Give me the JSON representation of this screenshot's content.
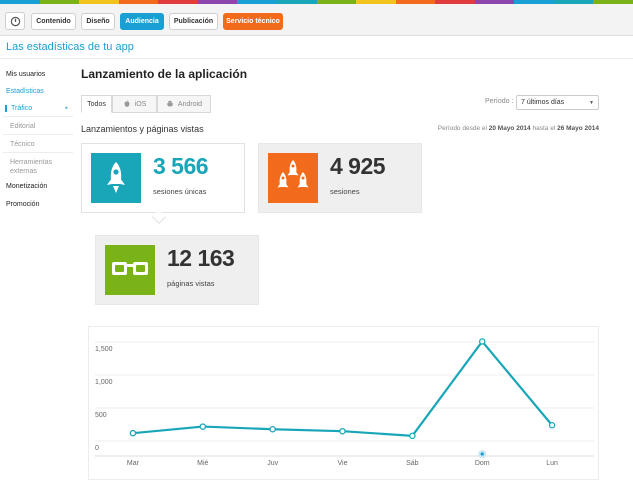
{
  "colors": {
    "accent": "#1a9fd4",
    "orange": "#f26b1d",
    "teal": "#19a6b9",
    "green": "#7ab317",
    "rainbow": [
      "#1a9fd4",
      "#7ab317",
      "#f2c31d",
      "#f26b1d",
      "#e23b3b",
      "#8e44ad",
      "#1a9fd4",
      "#19a6b9",
      "#7ab317",
      "#f2c31d",
      "#f26b1d",
      "#e23b3b",
      "#8e44ad",
      "#1a9fd4",
      "#19a6b9",
      "#7ab317"
    ]
  },
  "nav": {
    "home_icon": "home-icon",
    "tabs": [
      "Contenido",
      "Diseño",
      "Audiencia",
      "Publicación",
      "Servicio técnico"
    ]
  },
  "app_title": "Las estadísticas de tu app",
  "sidebar": {
    "items": [
      {
        "label": "Mis usuarios"
      },
      {
        "label": "Estadísticas"
      },
      {
        "label": "Tráfico"
      },
      {
        "label": "Editorial"
      },
      {
        "label": "Técnico"
      },
      {
        "label": "Herramientas externas"
      },
      {
        "label": "Monetización"
      },
      {
        "label": "Promoción"
      }
    ],
    "active_arrow": "▸"
  },
  "main": {
    "title": "Lanzamiento de la aplicación",
    "platform_tabs": [
      {
        "label": "Todos",
        "icon": ""
      },
      {
        "label": "iOS",
        "icon": "apple-icon"
      },
      {
        "label": "Android",
        "icon": "android-icon"
      }
    ],
    "periodo_label": "Período :",
    "periodo_value": "7 últimos días",
    "section_title": "Lanzamientos y páginas vistas",
    "range_prefix": "Período desde el",
    "range_from": "20 Mayo 2014",
    "range_mid": "hasta el",
    "range_to": "26 Mayo 2014"
  },
  "stats": [
    {
      "value": "3 566",
      "label": "sesiones únicas",
      "icon": "rocket-icon"
    },
    {
      "value": "4 925",
      "label": "sesiones",
      "icon": "rockets-icon"
    },
    {
      "value": "12 163",
      "label": "páginas vistas",
      "icon": "glasses-icon"
    }
  ],
  "chart_data": {
    "type": "line",
    "categories": [
      "Mar",
      "Mié",
      "Juv",
      "Vie",
      "Sáb",
      "Dom",
      "Lun"
    ],
    "series": [
      {
        "values": [
          270,
          370,
          330,
          300,
          230,
          1660,
          390
        ]
      }
    ],
    "yticks": [
      "0",
      "500",
      "1,000",
      "1,500"
    ],
    "ylim": [
      0,
      1800
    ],
    "grid": true,
    "highlight_category": "Dom",
    "color": "#19a6b9"
  }
}
